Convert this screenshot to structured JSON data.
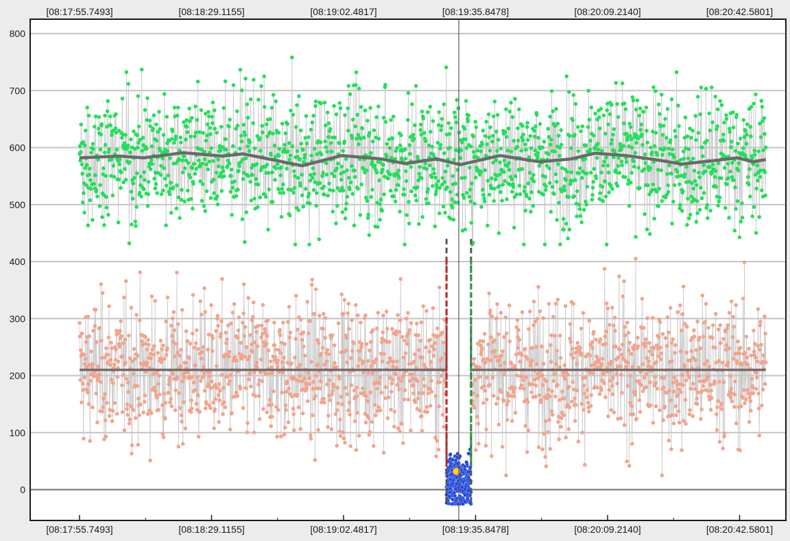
{
  "chart_data": {
    "type": "scatter",
    "title": "",
    "xlabel": "",
    "ylabel": "",
    "x_tick_labels": [
      "[08:17:55.7493]",
      "[08:18:29.1155]",
      "[08:19:02.4817]",
      "[08:19:35.8478]",
      "[08:20:09.2140]",
      "[08:20:42.5801]"
    ],
    "x_ticks_seconds": [
      "08:17:55.7493",
      "08:18:29.1155",
      "08:19:02.4817",
      "08:19:35.8478",
      "08:20:09.2140",
      "08:20:42.5801"
    ],
    "x_range": [
      "08:17:55.7493",
      "08:20:49.5"
    ],
    "ylim": [
      -60,
      830
    ],
    "y_ticks": [
      0,
      100,
      200,
      300,
      400,
      500,
      600,
      700,
      800
    ],
    "y_tick_labels": [
      "0",
      "100",
      "200",
      "300",
      "400",
      "500",
      "600",
      "700",
      "800"
    ],
    "grid": true,
    "cursor_x": "08:19:35.8478",
    "cursor_line_time": "08:19:31.6",
    "series": [
      {
        "color": "#22e05a",
        "x_range": [
          "08:17:55.7493",
          "08:20:49.2"
        ],
        "level_min": 430,
        "level_max": 800,
        "trend": [
          [
            "08:17:55.7",
            582
          ],
          [
            "08:18:05.8",
            585
          ],
          [
            "08:18:12.0",
            582
          ],
          [
            "08:18:22.0",
            591
          ],
          [
            "08:18:32.0",
            585
          ],
          [
            "08:18:37.0",
            589
          ],
          [
            "08:18:45.0",
            578
          ],
          [
            "08:18:52.0",
            568
          ],
          [
            "08:19:02.0",
            586
          ],
          [
            "08:19:12.0",
            580
          ],
          [
            "08:19:18.0",
            572
          ],
          [
            "08:19:26.0",
            580
          ],
          [
            "08:19:32.0",
            570
          ],
          [
            "08:19:42.0",
            586
          ],
          [
            "08:19:52.0",
            575
          ],
          [
            "08:20:00.0",
            580
          ],
          [
            "08:20:06.0",
            590
          ],
          [
            "08:20:14.0",
            586
          ],
          [
            "08:20:22.0",
            578
          ],
          [
            "08:20:28.0",
            571
          ],
          [
            "08:20:36.0",
            577
          ],
          [
            "08:20:42.0",
            582
          ],
          [
            "08:20:46.0",
            575
          ],
          [
            "08:20:49.2",
            579
          ]
        ]
      },
      {
        "color": "#f2a48c",
        "x_range": [
          "08:17:55.7493",
          "08:20:49.2"
        ],
        "gap": [
          "08:19:28.5",
          "08:19:34.7"
        ],
        "level_min": 25,
        "level_max": 405,
        "trend": [
          [
            "08:17:55.7",
            210
          ],
          [
            "08:20:49.2",
            210
          ]
        ]
      },
      {
        "color": "#2046d8",
        "x_range": [
          "08:19:28.5",
          "08:19:34.7"
        ],
        "level_min": -25,
        "level_max": 90,
        "highlight_point": {
          "x": "08:19:31.0",
          "y": 32,
          "color": "#ffd21a"
        }
      }
    ],
    "markers": [
      {
        "x": "08:19:28.5",
        "y_range": [
          -25,
          440
        ],
        "color": "#d42020"
      },
      {
        "x": "08:19:34.7",
        "y_range": [
          -25,
          440
        ],
        "color": "#1e9e3c"
      }
    ]
  }
}
